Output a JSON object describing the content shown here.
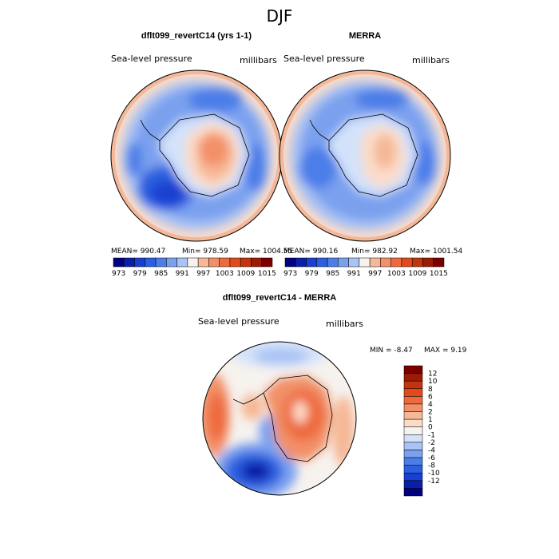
{
  "page_title": "DJF",
  "colors": {
    "neg": [
      "#000080",
      "#0a1fa8",
      "#1a3fd0",
      "#2b5fe0",
      "#4c7ee8",
      "#7aa0ee",
      "#a9c3f4",
      "#d3e2fa"
    ],
    "mid": "#f6f2ee",
    "pos": [
      "#fbdcc9",
      "#f6b896",
      "#f29068",
      "#ee6a3e",
      "#e04a1c",
      "#c23410",
      "#9a1c04",
      "#7a0000"
    ],
    "land": "#333333",
    "outline": "#000000"
  },
  "chart_data": [
    {
      "type": "heatmap",
      "title": "dflt099_revertC14 (yrs 1-1)",
      "variable_label": "Sea-level pressure",
      "units_label": "millibars",
      "stats": {
        "mean_label": "MEAN= 990.47",
        "min_label": "Min= 978.59",
        "max_label": "Max= 1004.55"
      },
      "colorbar_ticks": [
        "973",
        "979",
        "985",
        "991",
        "997",
        "1003",
        "1009",
        "1015"
      ],
      "colorbar_levels": 15
    },
    {
      "type": "heatmap",
      "title": "MERRA",
      "variable_label": "Sea-level pressure",
      "units_label": "millibars",
      "stats": {
        "mean_label": "MEAN= 990.16",
        "min_label": "Min= 982.92",
        "max_label": "Max= 1001.54"
      },
      "colorbar_ticks": [
        "973",
        "979",
        "985",
        "991",
        "997",
        "1003",
        "1009",
        "1015"
      ],
      "colorbar_levels": 15
    },
    {
      "type": "heatmap",
      "title": "dflt099_revertC14 - MERRA",
      "variable_label": "Sea-level pressure",
      "units_label": "millibars",
      "stats": {
        "min_label": "MIN = -8.47",
        "max_label": "MAX = 9.19"
      },
      "colorbar_ticks": [
        "12",
        "10",
        "8",
        "6",
        "4",
        "2",
        "1",
        "0",
        "-1",
        "-2",
        "-4",
        "-6",
        "-8",
        "-10",
        "-12"
      ]
    }
  ]
}
